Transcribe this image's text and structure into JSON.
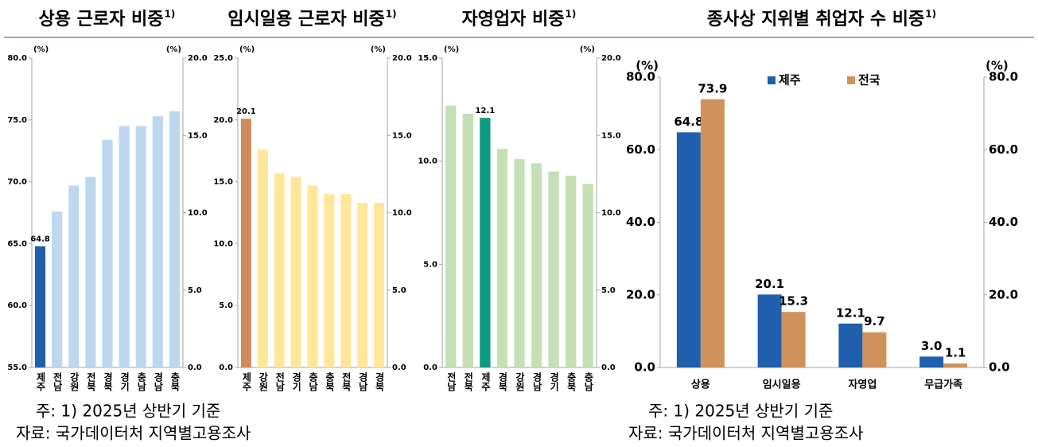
{
  "chart_data": [
    {
      "type": "bar",
      "title": "상용 근로자 비중",
      "title_sup": "1)",
      "categories": [
        "제주",
        "전남",
        "강원",
        "전북",
        "경북",
        "경기",
        "충남",
        "경남",
        "충북"
      ],
      "values": [
        64.8,
        67.6,
        69.7,
        70.4,
        73.4,
        74.5,
        74.5,
        75.3,
        75.7
      ],
      "color": "#bdd7ee",
      "highlight": "제주",
      "highlight_color": "#1f5fad",
      "ylabel": "(%)",
      "y2label": "(%)",
      "ylim": [
        55,
        80
      ],
      "yticks": [
        {
          "value": 55,
          "label": "55.0"
        },
        {
          "value": 60,
          "label": "60.0"
        },
        {
          "value": 65,
          "label": "65.0"
        },
        {
          "value": 70,
          "label": "70.0"
        },
        {
          "value": 75,
          "label": "75.0"
        },
        {
          "value": 80,
          "label": "80.0"
        }
      ],
      "y2lim": [
        0,
        20
      ],
      "y2ticks": [
        {
          "value": 0,
          "label": "0.0"
        },
        {
          "value": 5,
          "label": "5.0"
        },
        {
          "value": 10,
          "label": "10.0"
        },
        {
          "value": 15,
          "label": "15.0"
        },
        {
          "value": 20,
          "label": "20.0"
        }
      ]
    },
    {
      "type": "bar",
      "title": "임시일용 근로자 비중",
      "title_sup": "1)",
      "categories": [
        "제주",
        "강원",
        "전남",
        "경기",
        "충남",
        "충북",
        "전북",
        "경남",
        "경북"
      ],
      "values": [
        20.1,
        17.6,
        15.7,
        15.4,
        14.7,
        14.0,
        14.0,
        13.3,
        13.3
      ],
      "color": "#ffe699",
      "highlight": "제주",
      "highlight_color": "#d08c5a",
      "ylabel": "(%)",
      "y2label": "(%)",
      "ylim": [
        0,
        25
      ],
      "yticks": [
        {
          "value": 0,
          "label": "0.0"
        },
        {
          "value": 5,
          "label": "5.0"
        },
        {
          "value": 10,
          "label": "10.0"
        },
        {
          "value": 15,
          "label": "15.0"
        },
        {
          "value": 20,
          "label": "20.0"
        },
        {
          "value": 25,
          "label": "25.0"
        }
      ],
      "y2lim": [
        0,
        20
      ],
      "y2ticks": [
        {
          "value": 0,
          "label": "0.0"
        },
        {
          "value": 5,
          "label": "5.0"
        },
        {
          "value": 10,
          "label": "10.0"
        },
        {
          "value": 15,
          "label": "15.0"
        },
        {
          "value": 20,
          "label": "20.0"
        }
      ]
    },
    {
      "type": "bar",
      "title": "자영업자 비중",
      "title_sup": "1)",
      "categories": [
        "전남",
        "전북",
        "제주",
        "경북",
        "강원",
        "경남",
        "경기",
        "충북",
        "충남"
      ],
      "values": [
        12.7,
        12.3,
        12.1,
        10.6,
        10.1,
        9.9,
        9.5,
        9.3,
        8.9
      ],
      "color": "#c5e0b4",
      "highlight": "제주",
      "highlight_color": "#0e9a80",
      "ylabel": "(%)",
      "y2label": "(%)",
      "ylim": [
        0,
        15
      ],
      "yticks": [
        {
          "value": 0,
          "label": "0.0"
        },
        {
          "value": 5,
          "label": "5.0"
        },
        {
          "value": 10,
          "label": "10.0"
        },
        {
          "value": 15,
          "label": "15.0"
        }
      ],
      "y2lim": [
        0,
        20
      ],
      "y2ticks": [
        {
          "value": 0,
          "label": "0.0"
        },
        {
          "value": 5,
          "label": "5.0"
        },
        {
          "value": 10,
          "label": "10.0"
        },
        {
          "value": 15,
          "label": "15.0"
        },
        {
          "value": 20,
          "label": "20.0"
        }
      ]
    },
    {
      "type": "bar",
      "title": "종사상 지위별 취업자 수 비중",
      "title_sup": "1)",
      "categories": [
        "상용",
        "임시일용",
        "자영업",
        "무급가족"
      ],
      "series": [
        {
          "name": "제주",
          "color": "#1f5fad",
          "values": [
            64.8,
            20.1,
            12.1,
            3.0
          ],
          "value_labels": [
            "64.8",
            "20.1",
            "12.1",
            "3.0"
          ]
        },
        {
          "name": "전국",
          "color": "#d0925a",
          "values": [
            73.9,
            15.3,
            9.7,
            1.1
          ],
          "value_labels": [
            "73.9",
            "15.3",
            "9.7",
            "1.1"
          ]
        }
      ],
      "ylabel": "(%)",
      "y2label": "(%)",
      "ylim": [
        0,
        80
      ],
      "yticks": [
        {
          "value": 0,
          "label": "0.0"
        },
        {
          "value": 20,
          "label": "20.0"
        },
        {
          "value": 40,
          "label": "40.0"
        },
        {
          "value": 60,
          "label": "60.0"
        },
        {
          "value": 80,
          "label": "80.0"
        }
      ],
      "y2lim": [
        0,
        80
      ],
      "y2ticks": [
        {
          "value": 0,
          "label": "0.0"
        },
        {
          "value": 20,
          "label": "20.0"
        },
        {
          "value": 40,
          "label": "40.0"
        },
        {
          "value": 60,
          "label": "60.0"
        },
        {
          "value": 80,
          "label": "80.0"
        }
      ],
      "legend": "top"
    }
  ],
  "footnotes": [
    {
      "note": "주: 1) 2025년 상반기 기준",
      "source": "자료: 국가데이터처 지역별고용조사"
    },
    {
      "note": "주: 1) 2025년 상반기 기준",
      "source": "자료: 국가데이터처 지역별고용조사"
    }
  ]
}
